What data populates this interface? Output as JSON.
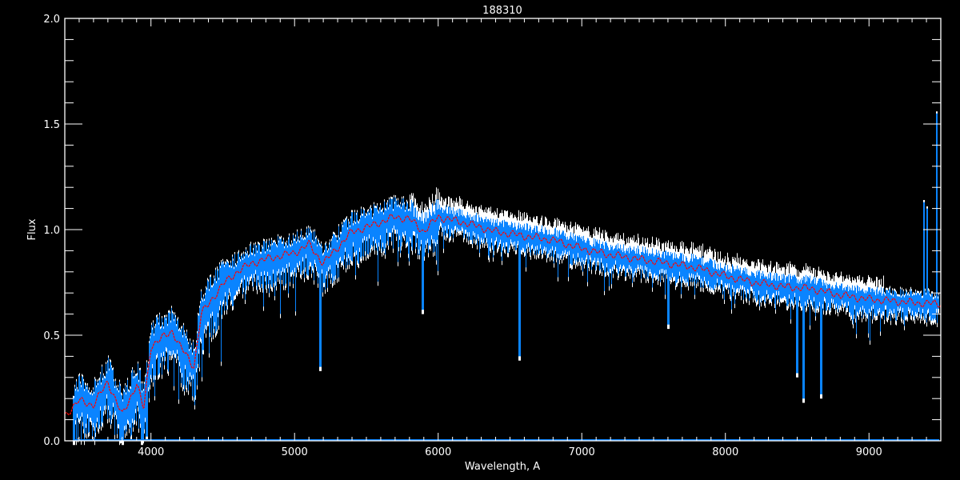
{
  "chart_data": {
    "type": "line",
    "title": "188310",
    "xlabel": "Wavelength, A",
    "ylabel": "Flux",
    "xlim": [
      3400,
      9500
    ],
    "ylim": [
      0.0,
      2.0
    ],
    "x_ticks": [
      4000,
      5000,
      6000,
      7000,
      8000,
      9000
    ],
    "y_ticks": [
      "0.0",
      "0.5",
      "1.0",
      "1.5",
      "2.0"
    ],
    "grid": false,
    "colors": {
      "background": "#000000",
      "axes": "#ffffff",
      "observed": "#0a84ff",
      "observed_upper": "#ffffff",
      "model": "#ff0000"
    },
    "series": [
      {
        "role": "model (red dashed)",
        "x": [
          3400,
          3500,
          3600,
          3700,
          3800,
          3900,
          3950,
          4000,
          4150,
          4200,
          4300,
          4350,
          4500,
          4600,
          4700,
          4800,
          5000,
          5100,
          5200,
          5400,
          5500,
          5700,
          5800,
          5900,
          6000,
          6200,
          6400,
          6600,
          6800,
          7000,
          7200,
          7400,
          7600,
          7800,
          8000,
          8200,
          8400,
          8600,
          8800,
          9000,
          9200,
          9400,
          9500
        ],
        "y": [
          0.12,
          0.19,
          0.17,
          0.28,
          0.12,
          0.27,
          0.15,
          0.45,
          0.52,
          0.45,
          0.35,
          0.6,
          0.74,
          0.8,
          0.84,
          0.86,
          0.89,
          0.93,
          0.84,
          0.99,
          1.01,
          1.06,
          1.05,
          0.99,
          1.06,
          1.03,
          0.99,
          0.97,
          0.95,
          0.91,
          0.88,
          0.86,
          0.84,
          0.82,
          0.78,
          0.75,
          0.73,
          0.72,
          0.69,
          0.67,
          0.66,
          0.65,
          0.65
        ]
      }
    ],
    "absorption_lines": [
      {
        "x": 3934,
        "y": 0.0
      },
      {
        "x": 3968,
        "y": 0.02
      },
      {
        "x": 5175,
        "y": 0.35
      },
      {
        "x": 5890,
        "y": 0.62
      },
      {
        "x": 6563,
        "y": 0.4
      },
      {
        "x": 7600,
        "y": 0.55
      },
      {
        "x": 8498,
        "y": 0.32
      },
      {
        "x": 8542,
        "y": 0.2
      },
      {
        "x": 8662,
        "y": 0.22
      }
    ],
    "emission_spikes": [
      {
        "x": 9380,
        "y": 1.13
      },
      {
        "x": 9405,
        "y": 1.1
      },
      {
        "x": 9470,
        "y": 1.55
      }
    ]
  }
}
